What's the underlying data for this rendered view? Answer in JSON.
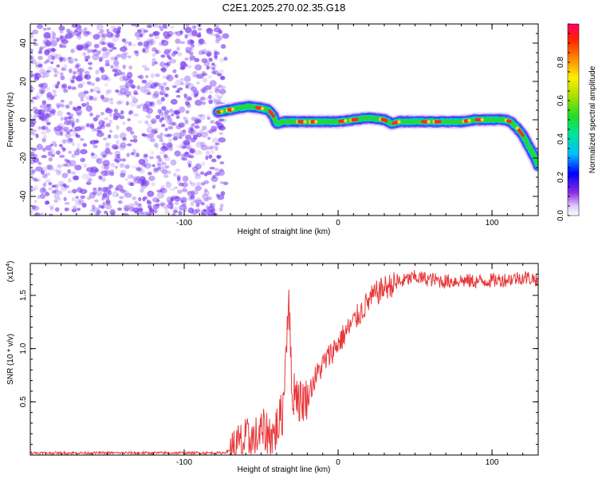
{
  "title": "C2E1.2025.270.02.35.G18",
  "colors": {
    "snr_line": "#e8383a",
    "scatter_points": "#7a3cf0",
    "frame": "#000000"
  },
  "chart_data": [
    {
      "type": "heatmap",
      "xlabel": "Height of straight line (km)",
      "ylabel": "Frequency (Hz)",
      "xlim": [
        -200,
        130
      ],
      "ylim": [
        -50,
        50
      ],
      "xticks": [
        -100,
        0,
        100
      ],
      "xtick_labels": [
        "-100",
        "0",
        "100"
      ],
      "yticks": [
        -40,
        -20,
        0,
        20,
        40
      ],
      "ytick_labels": [
        "-40",
        "-20",
        "0",
        "20",
        "40"
      ],
      "colorbar": {
        "label": "Normalized spectral amplitude",
        "range": [
          0,
          1
        ],
        "ticks": [
          0.0,
          0.2,
          0.4,
          0.6,
          0.8
        ],
        "tick_labels": [
          "0.0",
          "0.2",
          "0.4",
          "0.6",
          "0.8"
        ]
      },
      "noise_region_x": [
        -200,
        -73
      ],
      "ridge": {
        "x": [
          -78,
          -72,
          -65,
          -58,
          -50,
          -45,
          -42,
          -40,
          -35,
          -28,
          -20,
          -10,
          0,
          10,
          20,
          30,
          35,
          40,
          50,
          60,
          70,
          80,
          90,
          100,
          108,
          112,
          116,
          120,
          124,
          128,
          130
        ],
        "y": [
          4,
          5,
          6,
          7,
          6,
          5,
          2,
          -2,
          -1,
          -1,
          -1,
          -1,
          -1,
          0,
          1,
          0,
          -2,
          -1,
          -1,
          -1,
          -1,
          -1,
          0,
          0,
          0,
          -1,
          -4,
          -8,
          -14,
          -20,
          -24
        ]
      }
    },
    {
      "type": "line",
      "xlabel": "Height of straight line (km)",
      "ylabel": "SNR (10 * v/v)",
      "scale_label": "(x10",
      "scale_exponent": "4",
      "xlim": [
        -200,
        130
      ],
      "ylim": [
        0,
        1.8
      ],
      "xticks": [
        -100,
        0,
        100
      ],
      "xtick_labels": [
        "-100",
        "0",
        "100"
      ],
      "yticks": [
        0.5,
        1.0,
        1.5
      ],
      "ytick_labels": [
        "0.5",
        "1.0",
        "1.5"
      ],
      "series": [
        {
          "name": "SNR",
          "x": [
            -200,
            -150,
            -100,
            -75,
            -68,
            -62,
            -55,
            -48,
            -42,
            -36,
            -32,
            -30,
            -28,
            -25,
            -20,
            -15,
            -10,
            -5,
            0,
            5,
            10,
            15,
            20,
            25,
            30,
            35,
            40,
            45,
            50,
            60,
            70,
            80,
            90,
            100,
            110,
            120,
            130
          ],
          "y": [
            0.02,
            0.02,
            0.02,
            0.02,
            0.05,
            0.12,
            0.15,
            0.22,
            0.18,
            0.4,
            1.55,
            0.5,
            0.65,
            0.5,
            0.55,
            0.72,
            0.85,
            0.95,
            1.05,
            1.15,
            1.25,
            1.35,
            1.45,
            1.52,
            1.57,
            1.6,
            1.62,
            1.65,
            1.67,
            1.65,
            1.63,
            1.64,
            1.63,
            1.64,
            1.65,
            1.67,
            1.65
          ]
        }
      ]
    }
  ]
}
